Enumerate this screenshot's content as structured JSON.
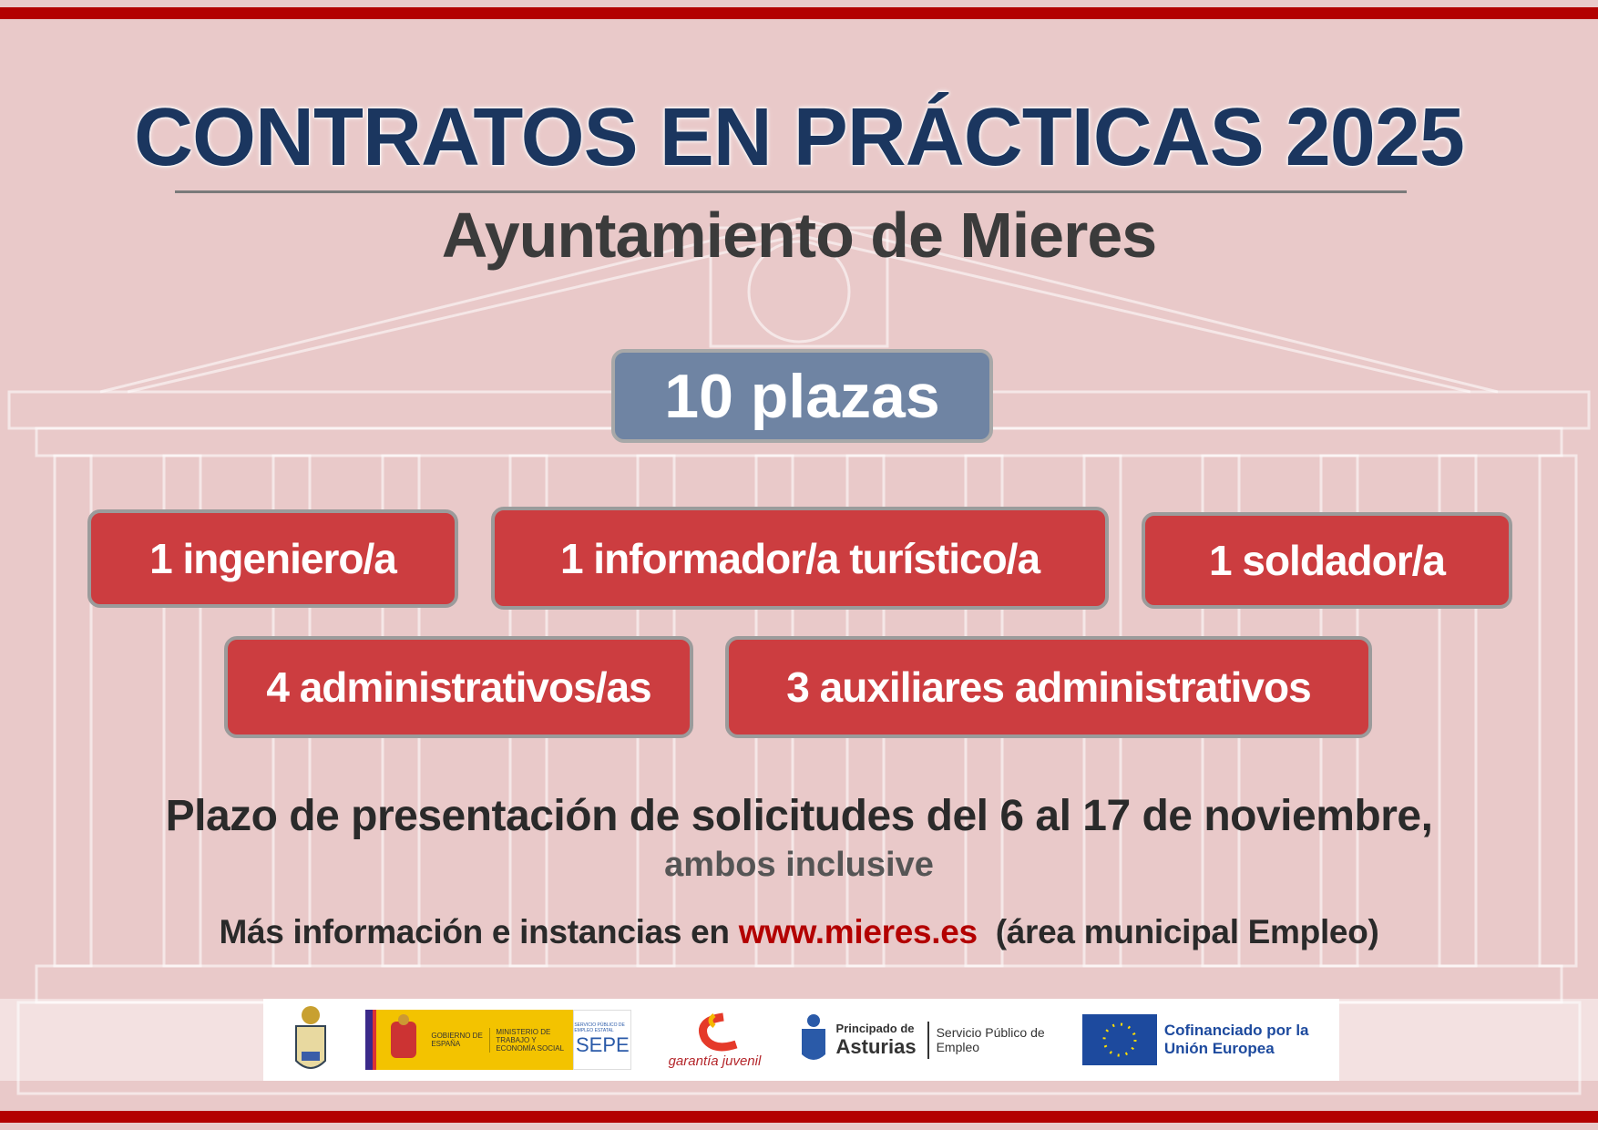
{
  "header": {
    "title": "CONTRATOS EN PRÁCTICAS 2025",
    "subtitle": "Ayuntamiento de Mieres"
  },
  "plazas": "10 plazas",
  "jobs": [
    "1 ingeniero/a",
    "1 informador/a turístico/a",
    "1 soldador/a",
    "4 administrativos/as",
    "3 auxiliares administrativos"
  ],
  "deadline": "Plazo de presentación de solicitudes del 6 al 17 de noviembre,",
  "deadline_note": "ambos inclusive",
  "info": {
    "prefix": "Más información e instancias en ",
    "url": "www.mieres.es",
    "suffix": "  (área municipal Empleo)"
  },
  "logos": {
    "gobierno": "GOBIERNO DE ESPAÑA",
    "ministerio": "MINISTERIO DE TRABAJO Y ECONOMÍA SOCIAL",
    "sepe_small": "SERVICIO PÚBLICO DE EMPLEO ESTATAL",
    "sepe": "SEPE",
    "garantia": "garantía juvenil",
    "principado": "Principado de",
    "asturias": "Asturias",
    "servicio": "Servicio Público de Empleo",
    "eu": "Cofinanciado por la Unión Europea"
  },
  "colors": {
    "title": "#1b365f",
    "accent": "#b30000",
    "job_box": "#cc3d40",
    "plazas_box": "#6f84a3",
    "background": "#e9c9c9"
  }
}
